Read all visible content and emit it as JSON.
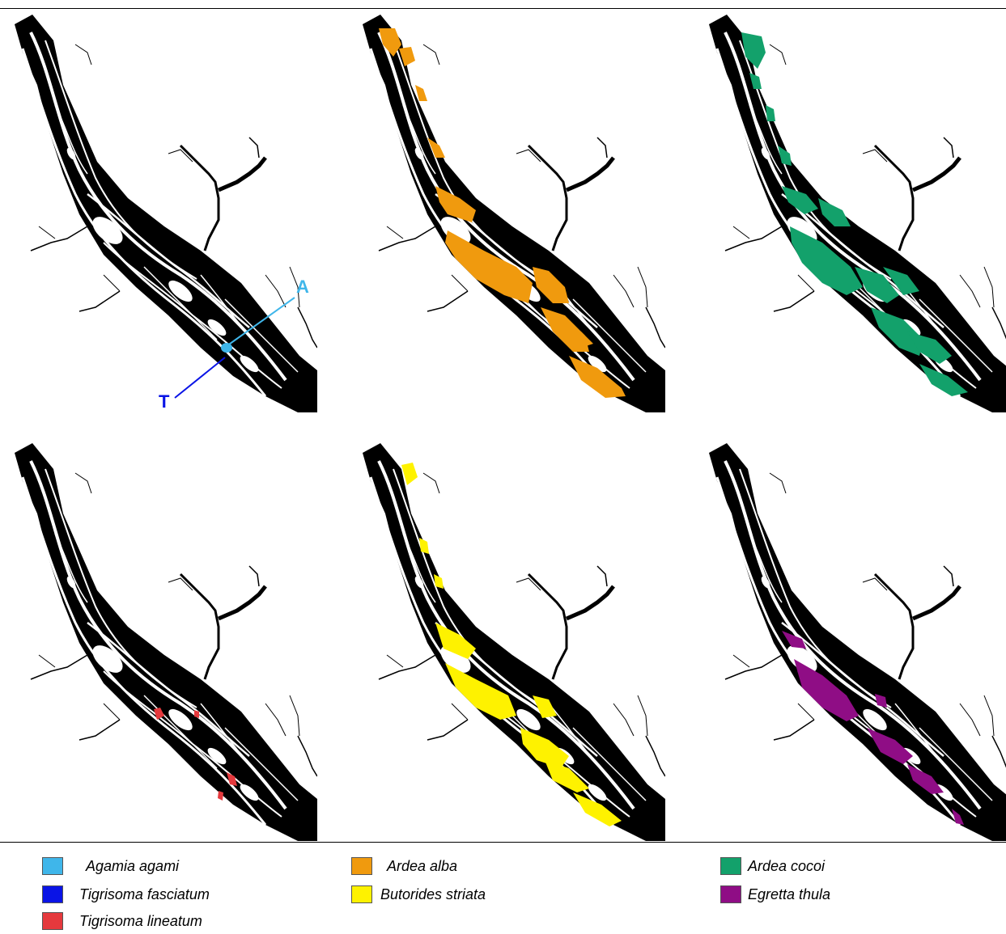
{
  "panels": [
    {
      "id": "p1",
      "species_overlay": [
        "Agamia agami",
        "Tigrisoma fasciatum"
      ]
    },
    {
      "id": "p2",
      "species_overlay": [
        "Ardea alba"
      ]
    },
    {
      "id": "p3",
      "species_overlay": [
        "Ardea cocoi"
      ]
    },
    {
      "id": "p4",
      "species_overlay": [
        "Tigrisoma lineatum"
      ]
    },
    {
      "id": "p5",
      "species_overlay": [
        "Butorides striata"
      ]
    },
    {
      "id": "p6",
      "species_overlay": [
        "Egretta thula"
      ]
    }
  ],
  "annotations": {
    "agami_marker": "A",
    "tigrisoma_marker": "T"
  },
  "legend": [
    {
      "label": "Agamia agami",
      "color": "#3fb6ea"
    },
    {
      "label": "Tigrisoma fasciatum",
      "color": "#0a14e6"
    },
    {
      "label": "Tigrisoma lineatum",
      "color": "#e5393d"
    },
    {
      "label": "Ardea alba",
      "color": "#f09a0e"
    },
    {
      "label": "Butorides striata",
      "color": "#fef200"
    },
    {
      "label": "Ardea cocoi",
      "color": "#13a16b"
    },
    {
      "label": "Egretta thula",
      "color": "#8f0d85"
    }
  ],
  "colors": {
    "river": "#000000",
    "background": "#ffffff",
    "agami": "#3fb6ea",
    "fasciatum": "#0a14e6",
    "lineatum": "#e5393d",
    "alba": "#f09a0e",
    "striata": "#fef200",
    "cocoi": "#13a16b",
    "thula": "#8f0d85"
  }
}
